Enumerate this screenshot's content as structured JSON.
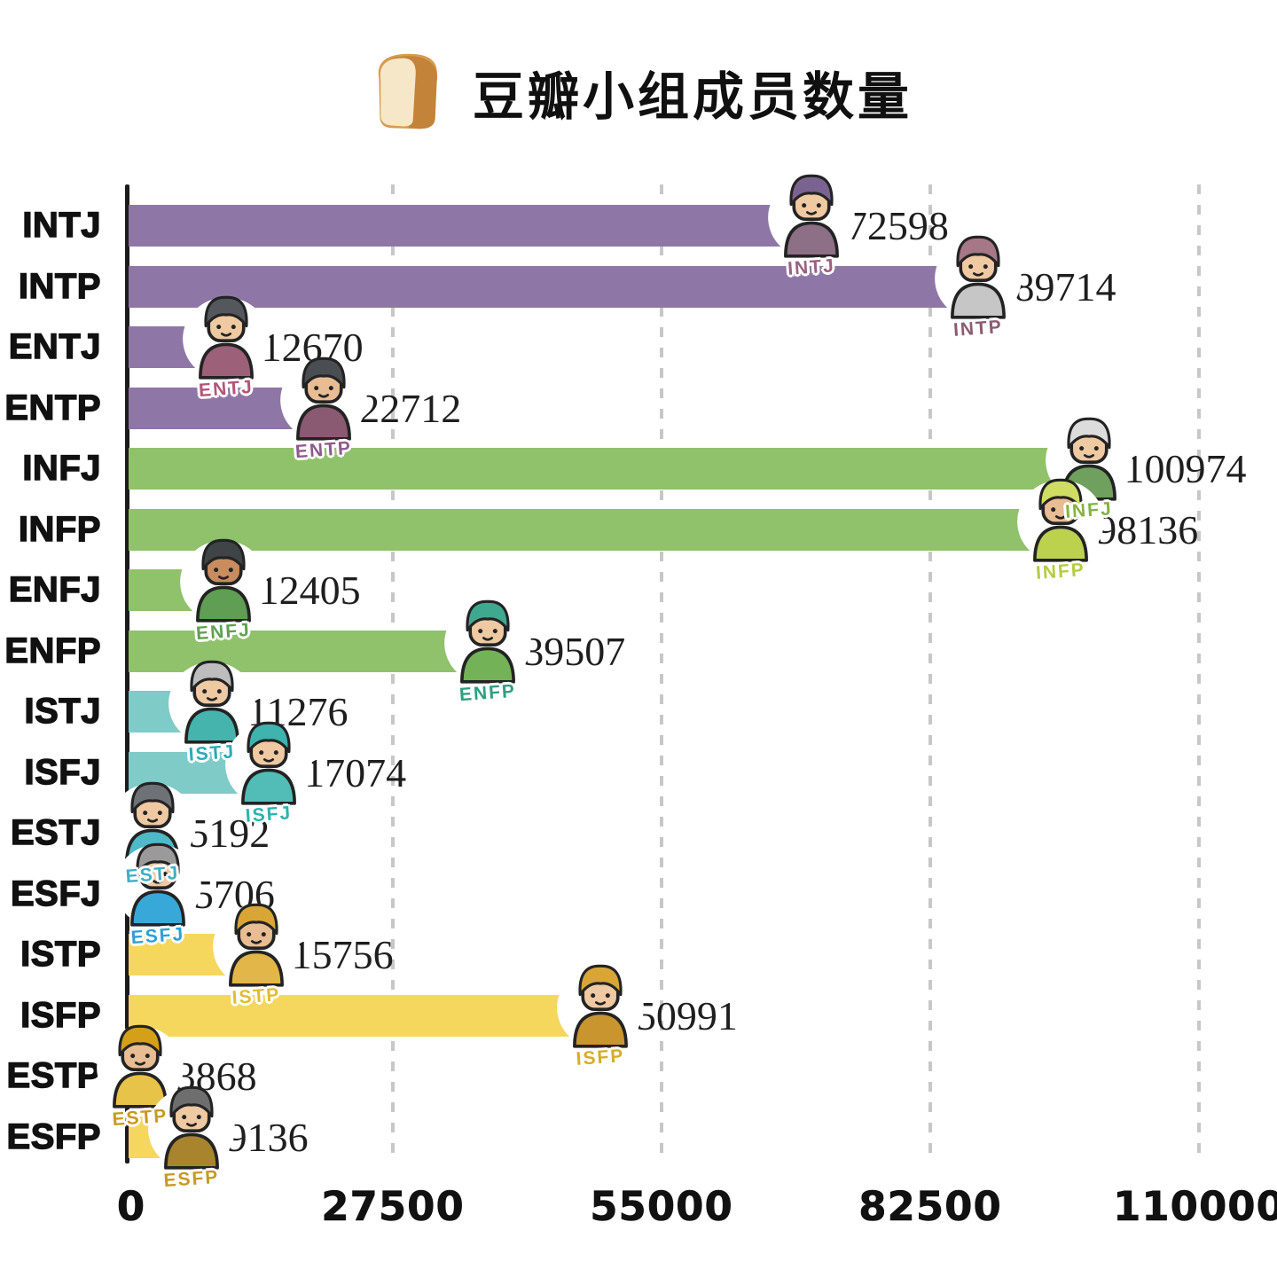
{
  "title": {
    "icon": "bread-icon",
    "text": "豆瓣小组成员数量"
  },
  "colors": {
    "background": "#FFFFFF",
    "axis": "#1C1C1C",
    "gridline": "#C7C7C7",
    "value_text": "#1E1E1E",
    "label_text": "#111111",
    "group_purple": "#8E77A7",
    "group_green": "#90C16B",
    "group_teal": "#7FCBC8",
    "group_yellow": "#F5D75E"
  },
  "chart_data": {
    "type": "bar",
    "orientation": "horizontal",
    "title": "豆瓣小组成员数量",
    "categories": [
      "INTJ",
      "INTP",
      "ENTJ",
      "ENTP",
      "INFJ",
      "INFP",
      "ENFJ",
      "ENFP",
      "ISTJ",
      "ISFJ",
      "ESTJ",
      "ESFJ",
      "ISTP",
      "ISFP",
      "ESTP",
      "ESFP"
    ],
    "values": [
      72598,
      89714,
      12670,
      22712,
      100974,
      98136,
      12405,
      39507,
      11276,
      17074,
      5192,
      5706,
      15756,
      50991,
      3868,
      9136
    ],
    "xlabel": "",
    "ylabel": "",
    "xlim": [
      0,
      110000
    ],
    "x_ticks": [
      0,
      27500,
      55000,
      82500,
      110000
    ],
    "grid": "vertical-dashed",
    "legend": "none",
    "value_labels": true
  },
  "x_axis": {
    "tick_labels": [
      "0",
      "27500",
      "55000",
      "82500",
      "110000"
    ]
  },
  "rows": [
    {
      "label": "INTJ",
      "value": 72598,
      "group": "analyst",
      "bar_color": "#8E77A7",
      "sticker": "INTJ",
      "sticker_color": "#9C5F80",
      "character": {
        "hair": "#7B6391",
        "shirt": "#8D6F86",
        "skin": "#EFC9A2"
      }
    },
    {
      "label": "INTP",
      "value": 89714,
      "group": "analyst",
      "bar_color": "#8E77A7",
      "sticker": "INTP",
      "sticker_color": "#8D5A70",
      "character": {
        "hair": "#A57787",
        "shirt": "#C6C6C6",
        "skin": "#EFC9A2"
      }
    },
    {
      "label": "ENTJ",
      "value": 12670,
      "group": "analyst",
      "bar_color": "#8E77A7",
      "sticker": "ENTJ",
      "sticker_color": "#B35577",
      "character": {
        "hair": "#54585C",
        "shirt": "#9C6079",
        "skin": "#EFC9A2"
      }
    },
    {
      "label": "ENTP",
      "value": 22712,
      "group": "analyst",
      "bar_color": "#8E77A7",
      "sticker": "ENTP",
      "sticker_color": "#8D5A8C",
      "character": {
        "hair": "#4A4E52",
        "shirt": "#8A5A72",
        "skin": "#E8BD94"
      }
    },
    {
      "label": "INFJ",
      "value": 100974,
      "group": "diplomat",
      "bar_color": "#90C16B",
      "sticker": "INFJ",
      "sticker_color": "#86B23F",
      "character": {
        "hair": "#DCDCDC",
        "shirt": "#6FA05E",
        "skin": "#EFC9A2"
      }
    },
    {
      "label": "INFP",
      "value": 98136,
      "group": "diplomat",
      "bar_color": "#90C16B",
      "sticker": "INFP",
      "sticker_color": "#B5CC3F",
      "character": {
        "hair": "#CFDE62",
        "shirt": "#BCD24F",
        "skin": "#E8BD94"
      }
    },
    {
      "label": "ENFJ",
      "value": 12405,
      "group": "diplomat",
      "bar_color": "#90C16B",
      "sticker": "ENFJ",
      "sticker_color": "#5FA04E",
      "character": {
        "hair": "#3F4447",
        "shirt": "#5F9E53",
        "skin": "#C98C5F"
      }
    },
    {
      "label": "ENFP",
      "value": 39507,
      "group": "diplomat",
      "bar_color": "#90C16B",
      "sticker": "ENFP",
      "sticker_color": "#2F9E80",
      "character": {
        "hair": "#3FA98F",
        "shirt": "#74B257",
        "skin": "#EFC9A2"
      }
    },
    {
      "label": "ISTJ",
      "value": 11276,
      "group": "sentinel",
      "bar_color": "#7FCBC8",
      "sticker": "ISTJ",
      "sticker_color": "#2BAAB8",
      "character": {
        "hair": "#BDBDBD",
        "shirt": "#45B4AC",
        "skin": "#EFC9A2"
      }
    },
    {
      "label": "ISFJ",
      "value": 17074,
      "group": "sentinel",
      "bar_color": "#7FCBC8",
      "sticker": "ISFJ",
      "sticker_color": "#2BB3AD",
      "character": {
        "hair": "#3FB3AD",
        "shirt": "#52BDB6",
        "skin": "#EFC9A2"
      }
    },
    {
      "label": "ESTJ",
      "value": 5192,
      "group": "sentinel",
      "bar_color": "#7FCBC8",
      "sticker": "ESTJ",
      "sticker_color": "#3FAFC4",
      "character": {
        "hair": "#6E7276",
        "shirt": "#4FB9C9",
        "skin": "#EFC9A2"
      }
    },
    {
      "label": "ESFJ",
      "value": 5706,
      "group": "sentinel",
      "bar_color": "#7FCBC8",
      "sticker": "ESFJ",
      "sticker_color": "#2E9FD6",
      "character": {
        "hair": "#9A9A9A",
        "shirt": "#38A8D8",
        "skin": "#EFC9A2"
      }
    },
    {
      "label": "ISTP",
      "value": 15756,
      "group": "explorer",
      "bar_color": "#F5D75E",
      "sticker": "ISTP",
      "sticker_color": "#E3BC2E",
      "character": {
        "hair": "#D9A636",
        "shirt": "#E3B64A",
        "skin": "#E8BD94"
      }
    },
    {
      "label": "ISFP",
      "value": 50991,
      "group": "explorer",
      "bar_color": "#F5D75E",
      "sticker": "ISFP",
      "sticker_color": "#D8AC26",
      "character": {
        "hair": "#D9A636",
        "shirt": "#C9952E",
        "skin": "#EFC9A2"
      }
    },
    {
      "label": "ESTP",
      "value": 3868,
      "group": "explorer",
      "bar_color": "#F5D75E",
      "sticker": "ESTP",
      "sticker_color": "#C9991F",
      "character": {
        "hair": "#D4A017",
        "shirt": "#E8C34A",
        "skin": "#E8BD94"
      }
    },
    {
      "label": "ESFP",
      "value": 9136,
      "group": "explorer",
      "bar_color": "#F5D75E",
      "sticker": "ESFP",
      "sticker_color": "#C9991F",
      "character": {
        "hair": "#6E6E6E",
        "shirt": "#A8842E",
        "skin": "#EFC9A2"
      }
    }
  ]
}
